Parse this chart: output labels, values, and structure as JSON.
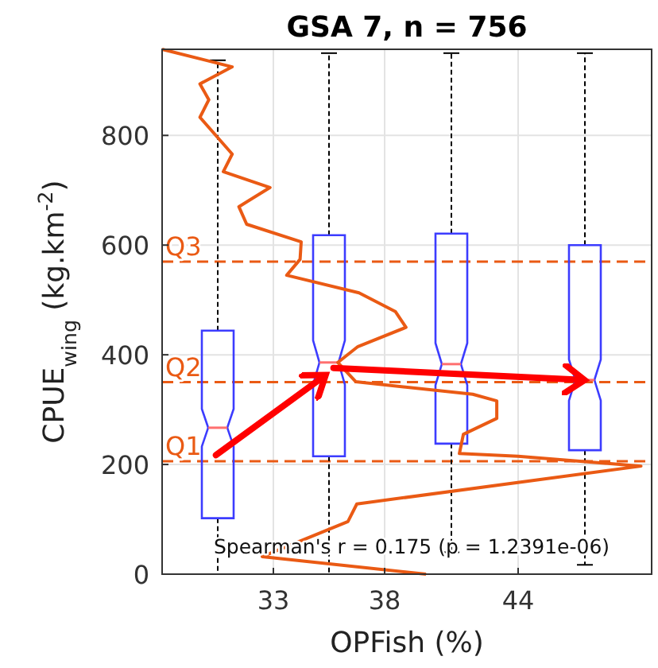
{
  "chart_data": {
    "type": "box",
    "title": "GSA 7, n = 756",
    "xlabel": "OPFish (%)",
    "ylabel": "CPUE$_{wing}$ (kg.km$^{-2}$)",
    "x": [
      30.5,
      35.5,
      41,
      47
    ],
    "xlim": [
      28,
      50
    ],
    "xticks": [
      33,
      38,
      44
    ],
    "ylim": [
      0,
      957
    ],
    "yticks": [
      0,
      200,
      400,
      600,
      800
    ],
    "grid": true,
    "series": [
      {
        "color": "#3c3cff",
        "boxes": [
          {
            "low": 0,
            "q1": 102,
            "median": 267,
            "q3": 444,
            "high": 937
          },
          {
            "low": 0,
            "q1": 215,
            "median": 386,
            "q3": 618,
            "high": 950
          },
          {
            "low": 40,
            "q1": 238,
            "median": 383,
            "q3": 621,
            "high": 950
          },
          {
            "low": 17,
            "q1": 226,
            "median": 354,
            "q3": 600,
            "high": 950
          }
        ]
      },
      {
        "type": "line",
        "color": "#ea5a14",
        "x": [
          28,
          31.15,
          29.7,
          30.1,
          29.7,
          31.15,
          30.75,
          32.85,
          31.45,
          31.8,
          34.25,
          34.2,
          33.6,
          36.85,
          38.48,
          38.96,
          36.8,
          35.9,
          36.7,
          41.96,
          43.04,
          43.04,
          41.54,
          41.36,
          44,
          49.52,
          36.75,
          36.35,
          32.5,
          39.86
        ],
        "values": [
          957,
          925,
          894,
          865,
          833,
          766,
          734,
          705,
          670,
          638,
          606,
          574,
          545,
          513,
          479,
          450,
          415,
          386,
          351,
          328,
          316,
          284,
          255,
          220,
          215,
          197,
          128,
          96,
          32,
          0
        ]
      }
    ],
    "ref_lines": [
      {
        "axis": "y",
        "value": 206,
        "label": "Q1",
        "color": "#ea5a14",
        "line_style": "dashed"
      },
      {
        "axis": "y",
        "value": 350,
        "label": "Q2",
        "color": "#ea5a14",
        "line_style": "dashed"
      },
      {
        "axis": "y",
        "value": 570,
        "label": "Q3",
        "color": "#ea5a14",
        "line_style": "dashed"
      }
    ],
    "annotations": [
      "Spearman's r = 0.175 (p = 1.2391e-06)"
    ]
  }
}
